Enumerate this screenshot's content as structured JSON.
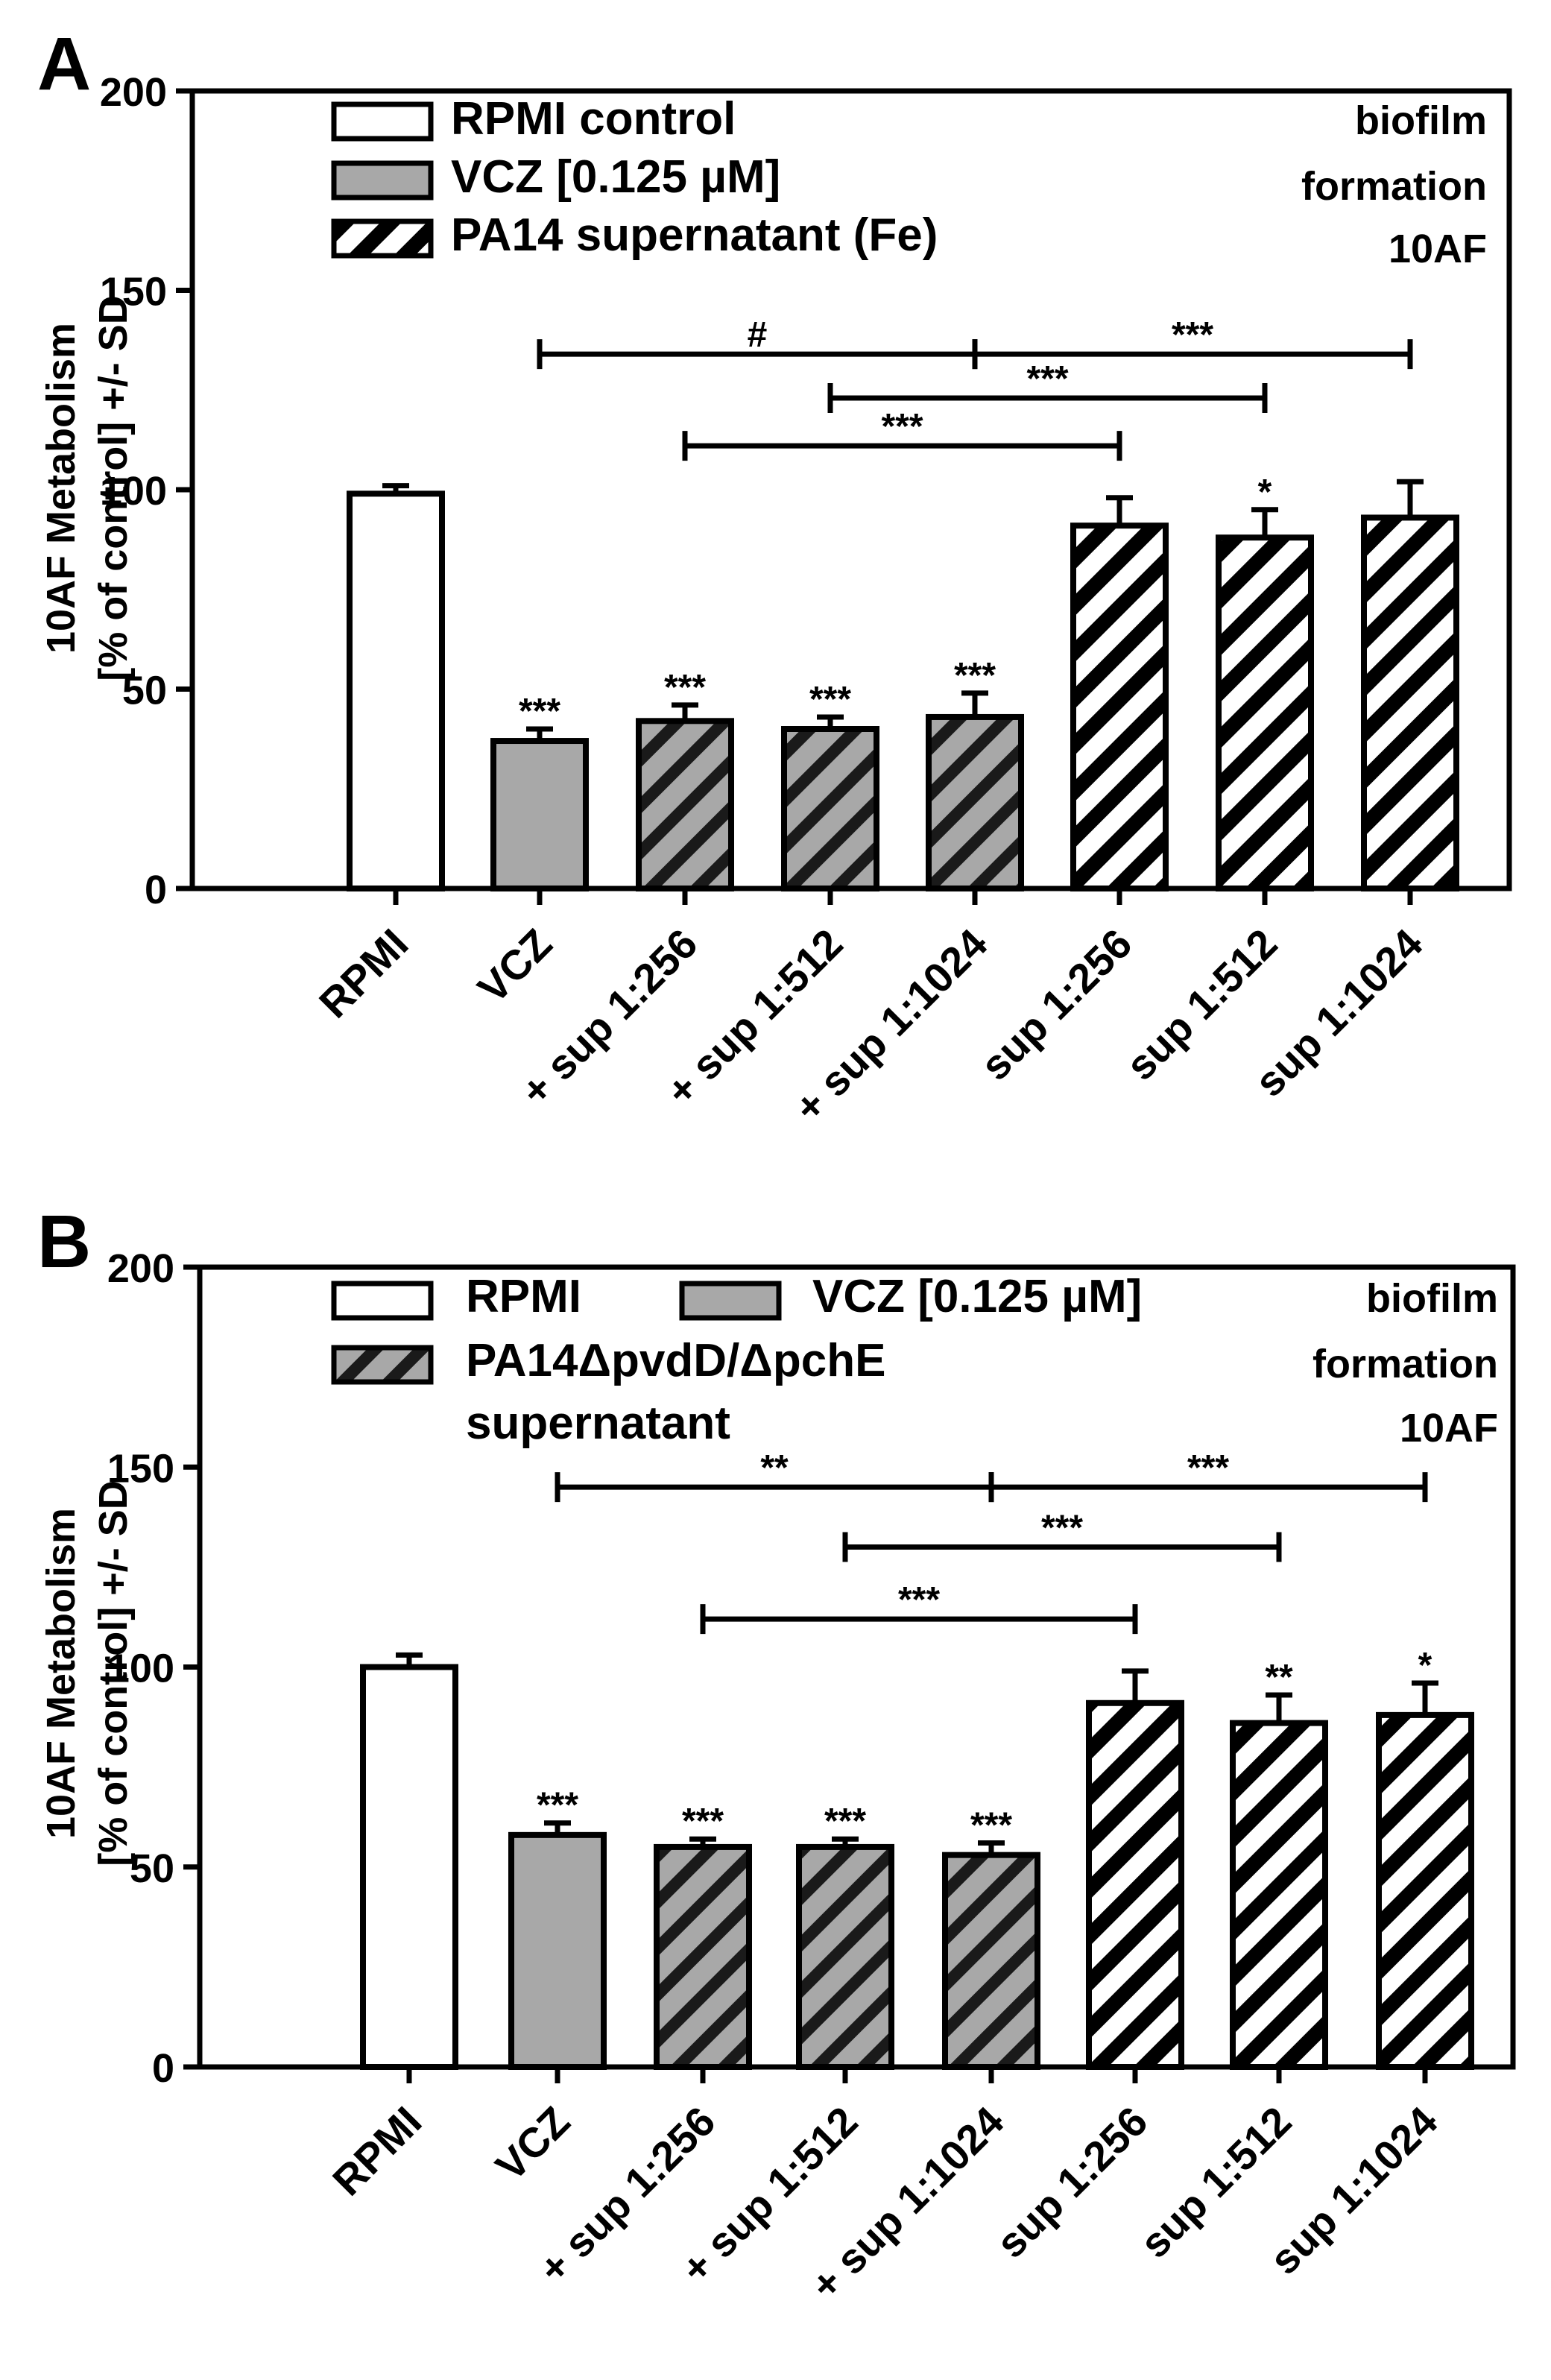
{
  "chart_data": [
    {
      "panel_label": "A",
      "type": "bar",
      "ylabel_line1": "10AF Metabolism",
      "ylabel_line2": "[% of control] +/- SD",
      "ylim": [
        0,
        200
      ],
      "yticks": [
        "0",
        "50",
        "100",
        "150",
        "200"
      ],
      "corner_text": [
        "biofilm",
        "formation",
        "10AF"
      ],
      "legend": [
        {
          "label": "RPMI control",
          "style": "white"
        },
        {
          "label": "VCZ [0.125 µM]",
          "style": "gray"
        },
        {
          "label": "PA14 supernatant (Fe)",
          "style": "hatch-white"
        }
      ],
      "categories": [
        "RPMI",
        "VCZ",
        "+ sup 1:256",
        "+ sup 1:512",
        "+ sup 1:1024",
        "sup 1:256",
        "sup 1:512",
        "sup 1:1024"
      ],
      "values": [
        99,
        37,
        42,
        40,
        43,
        91,
        88,
        93
      ],
      "errors": [
        2,
        3,
        4,
        3,
        6,
        7,
        7,
        9
      ],
      "styles": [
        "white",
        "gray",
        "hatch-gray",
        "hatch-gray",
        "hatch-gray",
        "hatch-white",
        "hatch-white",
        "hatch-white"
      ],
      "bar_labels": [
        "",
        "***",
        "***",
        "***",
        "***",
        "",
        "*",
        ""
      ],
      "brackets": [
        {
          "from": 1,
          "to": 4,
          "y": 134,
          "label": "#"
        },
        {
          "from": 4,
          "to": 7,
          "y": 134,
          "label": "***"
        },
        {
          "from": 3,
          "to": 6,
          "y": 123,
          "label": "***"
        },
        {
          "from": 2,
          "to": 5,
          "y": 111,
          "label": "***"
        }
      ]
    },
    {
      "panel_label": "B",
      "type": "bar",
      "ylabel_line1": "10AF Metabolism",
      "ylabel_line2": "[% of control] +/- SD",
      "ylim": [
        0,
        200
      ],
      "yticks": [
        "0",
        "50",
        "100",
        "150",
        "200"
      ],
      "corner_text": [
        "biofilm",
        "formation",
        "10AF"
      ],
      "legend": [
        {
          "label": "RPMI",
          "style": "white"
        },
        {
          "label": "VCZ [0.125 µM]",
          "style": "gray"
        },
        {
          "label": "PA14ΔpvdD/ΔpchE",
          "style": "hatch-gray"
        },
        {
          "label": "supernatant",
          "style": ""
        }
      ],
      "categories": [
        "RPMI",
        "VCZ",
        "+ sup 1:256",
        "+ sup 1:512",
        "+ sup 1:1024",
        "sup 1:256",
        "sup 1:512",
        "sup 1:1024"
      ],
      "values": [
        100,
        58,
        55,
        55,
        53,
        91,
        86,
        88
      ],
      "errors": [
        3,
        3,
        2,
        2,
        3,
        8,
        7,
        8
      ],
      "styles": [
        "white",
        "gray",
        "hatch-gray",
        "hatch-gray",
        "hatch-gray",
        "hatch-white",
        "hatch-white",
        "hatch-white"
      ],
      "bar_labels": [
        "",
        "***",
        "***",
        "***",
        "***",
        "",
        "**",
        "*"
      ],
      "brackets": [
        {
          "from": 1,
          "to": 4,
          "y": 145,
          "label": "**"
        },
        {
          "from": 4,
          "to": 7,
          "y": 145,
          "label": "***"
        },
        {
          "from": 3,
          "to": 6,
          "y": 130,
          "label": "***"
        },
        {
          "from": 2,
          "to": 5,
          "y": 112,
          "label": "***"
        }
      ]
    }
  ]
}
